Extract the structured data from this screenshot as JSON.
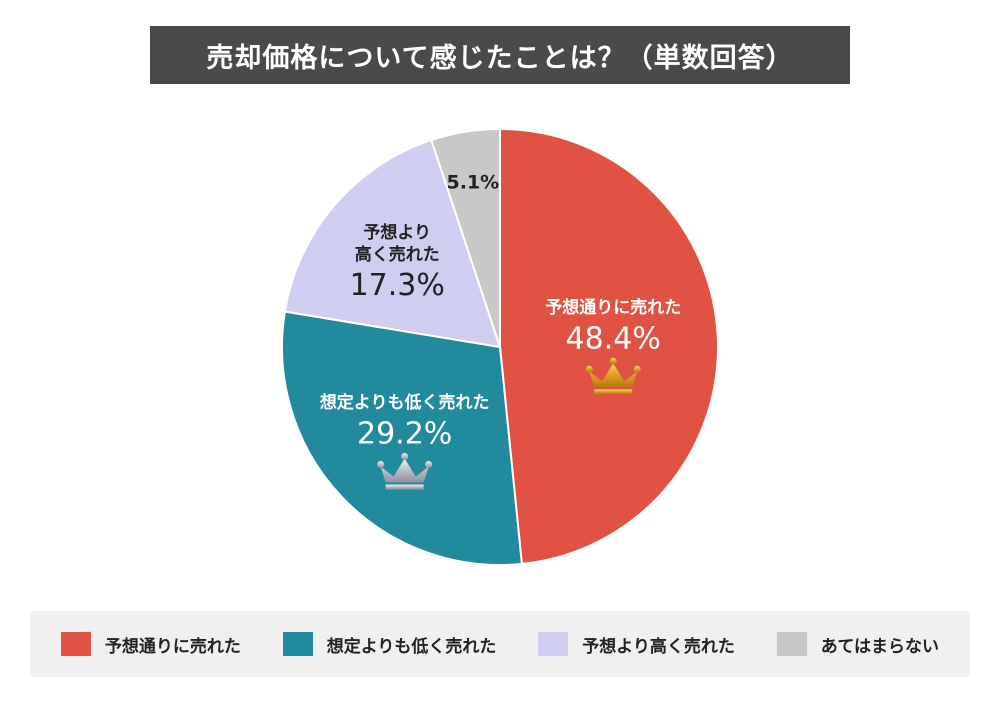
{
  "chart_data": {
    "type": "pie",
    "title": "売却価格について感じたことは？（単数回答）",
    "categories": [
      "予想通りに売れた",
      "想定よりも低く売れた",
      "予想より高く売れた",
      "あてはまらない"
    ],
    "values": [
      48.4,
      29.2,
      17.3,
      5.1
    ],
    "value_labels": [
      "48.4%",
      "29.2%",
      "17.3%",
      "5.1%"
    ],
    "slice_labels": [
      [
        "予想通りに売れた"
      ],
      [
        "想定よりも低く売れた"
      ],
      [
        "予想より",
        "高く売れた"
      ],
      []
    ],
    "colors": [
      "#e05244",
      "#218a9c",
      "#cfcdf0",
      "#c8c8c8"
    ],
    "label_colors": [
      "#ffffff",
      "#ffffff",
      "#222222",
      "#222222"
    ],
    "ranks": [
      {
        "rank": 1,
        "icon": "gold-crown-icon",
        "color": "#e0a82a"
      },
      {
        "rank": 2,
        "icon": "silver-crown-icon",
        "color": "#b8bcc4"
      }
    ],
    "legend_position": "bottom"
  }
}
